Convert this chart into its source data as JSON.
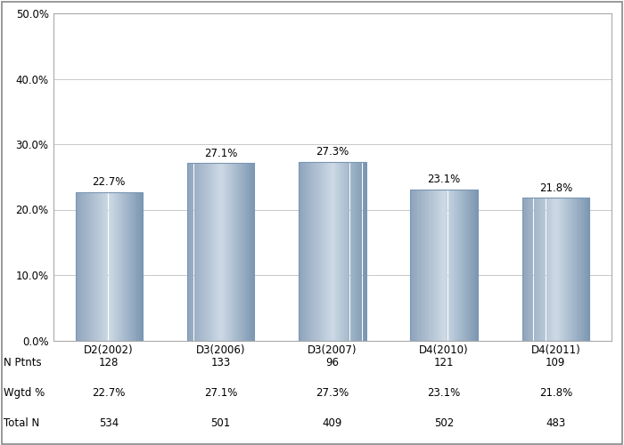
{
  "categories": [
    "D2(2002)",
    "D3(2006)",
    "D3(2007)",
    "D4(2010)",
    "D4(2011)"
  ],
  "values": [
    22.7,
    27.1,
    27.3,
    23.1,
    21.8
  ],
  "label_values": [
    "22.7%",
    "27.1%",
    "27.3%",
    "23.1%",
    "21.8%"
  ],
  "n_ptnts": [
    128,
    133,
    96,
    121,
    109
  ],
  "wgtd_pct": [
    "22.7%",
    "27.1%",
    "27.3%",
    "23.1%",
    "21.8%"
  ],
  "total_n": [
    534,
    501,
    409,
    502,
    483
  ],
  "ylim": [
    0,
    50
  ],
  "yticks": [
    0,
    10,
    20,
    30,
    40,
    50
  ],
  "ytick_labels": [
    "0.0%",
    "10.0%",
    "20.0%",
    "30.0%",
    "40.0%",
    "50.0%"
  ],
  "background_color": "#ffffff",
  "plot_bg_color": "#ffffff",
  "grid_color": "#c8c8c8",
  "text_color": "#000000",
  "table_row_labels": [
    "N Ptnts",
    "Wgtd %",
    "Total N"
  ],
  "bar_width": 0.6,
  "bar_color_left": "#9ab0c8",
  "bar_color_center": "#cdd9e5",
  "bar_color_right": "#8fa4bc"
}
